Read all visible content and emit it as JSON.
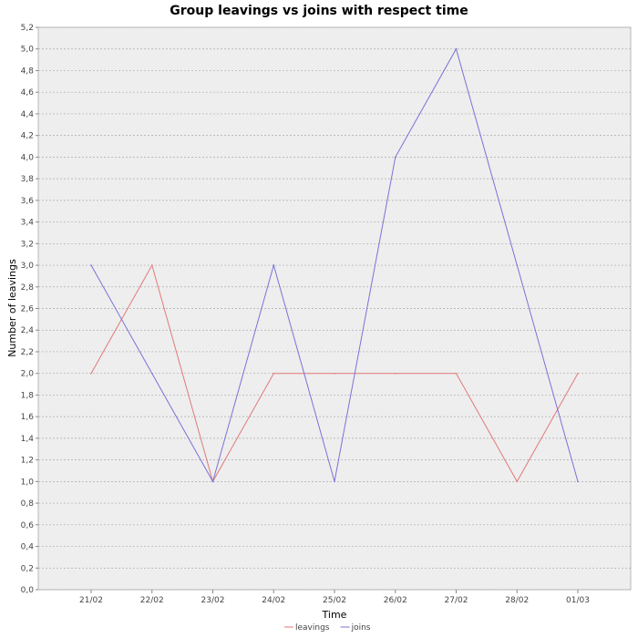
{
  "chart_data": {
    "type": "line",
    "title": "Group leavings vs joins with respect time",
    "xlabel": "Time",
    "ylabel": "Number of leavings",
    "categories": [
      "21/02",
      "22/02",
      "23/02",
      "24/02",
      "25/02",
      "26/02",
      "27/02",
      "28/02",
      "01/03"
    ],
    "series": [
      {
        "name": "leavings",
        "color": "#e07a7a",
        "values": [
          2,
          3,
          1,
          2,
          2,
          2,
          2,
          1,
          2
        ]
      },
      {
        "name": "joins",
        "color": "#7a72d6",
        "values": [
          3,
          2,
          1,
          3,
          1,
          4,
          5,
          3,
          1
        ]
      }
    ],
    "ylim": [
      0,
      5.2
    ],
    "yticks": [
      "0,0",
      "0,2",
      "0,4",
      "0,6",
      "0,8",
      "1,0",
      "1,2",
      "1,4",
      "1,6",
      "1,8",
      "2,0",
      "2,2",
      "2,4",
      "2,6",
      "2,8",
      "3,0",
      "3,2",
      "3,4",
      "3,6",
      "3,8",
      "4,0",
      "4,2",
      "4,4",
      "4,6",
      "4,8",
      "5,0",
      "5,2"
    ],
    "grid": true,
    "legend": "bottom-center",
    "plot_background": "#eeeeee",
    "grid_color": "#aaaaaa"
  }
}
